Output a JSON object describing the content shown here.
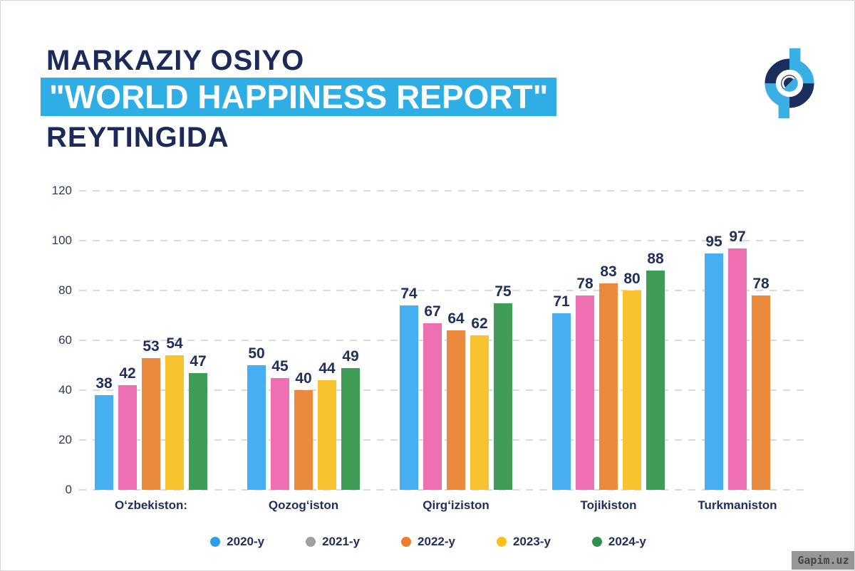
{
  "header": {
    "title_line1": "MARKAZIY OSIYO",
    "title_line2_highlighted": "\"WORLD HAPPINESS REPORT\"",
    "title_line3": "REYTINGIDA"
  },
  "colors": {
    "navy_text": "#1B2A58",
    "highlight_blue": "#2EAEE4",
    "gridline_gray": "#DADADA",
    "logo_light_blue": "#3AAFE4",
    "logo_navy": "#1C2E5E"
  },
  "chart_data": {
    "type": "bar",
    "title": "Markaziy Osiyo \"World Happiness Report\" reytingida",
    "categories": [
      "Oʻzbekiston:",
      "Qozogʻiston",
      "Qirgʻiziston",
      "Tojikiston",
      "Turkmaniston"
    ],
    "series": [
      {
        "name": "2020-y",
        "color": "#45AFF1",
        "legend_color": "#2D9FE8",
        "values": [
          38,
          50,
          74,
          71,
          95
        ]
      },
      {
        "name": "2021-y",
        "color": "#EF6FB3",
        "legend_color": "#A0A0A4",
        "values": [
          42,
          45,
          67,
          78,
          97
        ]
      },
      {
        "name": "2022-y",
        "color": "#EB8A3D",
        "legend_color": "#ED7C2F",
        "values": [
          53,
          40,
          64,
          83,
          78
        ]
      },
      {
        "name": "2023-y",
        "color": "#F9C32F",
        "legend_color": "#FBBF17",
        "values": [
          54,
          44,
          62,
          80,
          null
        ]
      },
      {
        "name": "2024-y",
        "color": "#3F9D55",
        "legend_color": "#2F9149",
        "values": [
          47,
          49,
          75,
          88,
          null
        ]
      }
    ],
    "y_ticks": [
      0,
      20,
      40,
      60,
      80,
      100,
      120
    ],
    "ylim": [
      0,
      120
    ],
    "xlabel": "",
    "ylabel": "",
    "grid": "horizontal-dashed",
    "legend_position": "bottom",
    "bar_value_labels": true
  },
  "watermark": {
    "text": "Gapim.uz"
  }
}
